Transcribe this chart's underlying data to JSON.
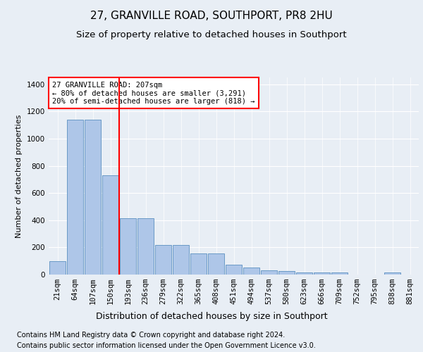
{
  "title": "27, GRANVILLE ROAD, SOUTHPORT, PR8 2HU",
  "subtitle": "Size of property relative to detached houses in Southport",
  "xlabel": "Distribution of detached houses by size in Southport",
  "ylabel": "Number of detached properties",
  "footnote1": "Contains HM Land Registry data © Crown copyright and database right 2024.",
  "footnote2": "Contains public sector information licensed under the Open Government Licence v3.0.",
  "categories": [
    "21sqm",
    "64sqm",
    "107sqm",
    "150sqm",
    "193sqm",
    "236sqm",
    "279sqm",
    "322sqm",
    "365sqm",
    "408sqm",
    "451sqm",
    "494sqm",
    "537sqm",
    "580sqm",
    "623sqm",
    "666sqm",
    "709sqm",
    "752sqm",
    "795sqm",
    "838sqm",
    "881sqm"
  ],
  "values": [
    100,
    1140,
    1140,
    730,
    415,
    415,
    215,
    215,
    155,
    155,
    70,
    50,
    30,
    25,
    18,
    15,
    14,
    0,
    0,
    16,
    0
  ],
  "bar_color": "#aec6e8",
  "bar_edge_color": "#5a8fc0",
  "vline_color": "red",
  "vline_index": 3.5,
  "annotation_text": "27 GRANVILLE ROAD: 207sqm\n← 80% of detached houses are smaller (3,291)\n20% of semi-detached houses are larger (818) →",
  "annotation_box_color": "white",
  "annotation_box_edgecolor": "red",
  "ylim": [
    0,
    1450
  ],
  "yticks": [
    0,
    200,
    400,
    600,
    800,
    1000,
    1200,
    1400
  ],
  "fig_bg_color": "#e8eef5",
  "plot_bg_color": "#e8eef5",
  "title_fontsize": 11,
  "subtitle_fontsize": 9.5,
  "xlabel_fontsize": 9,
  "ylabel_fontsize": 8,
  "footnote_fontsize": 7,
  "tick_fontsize": 7.5
}
